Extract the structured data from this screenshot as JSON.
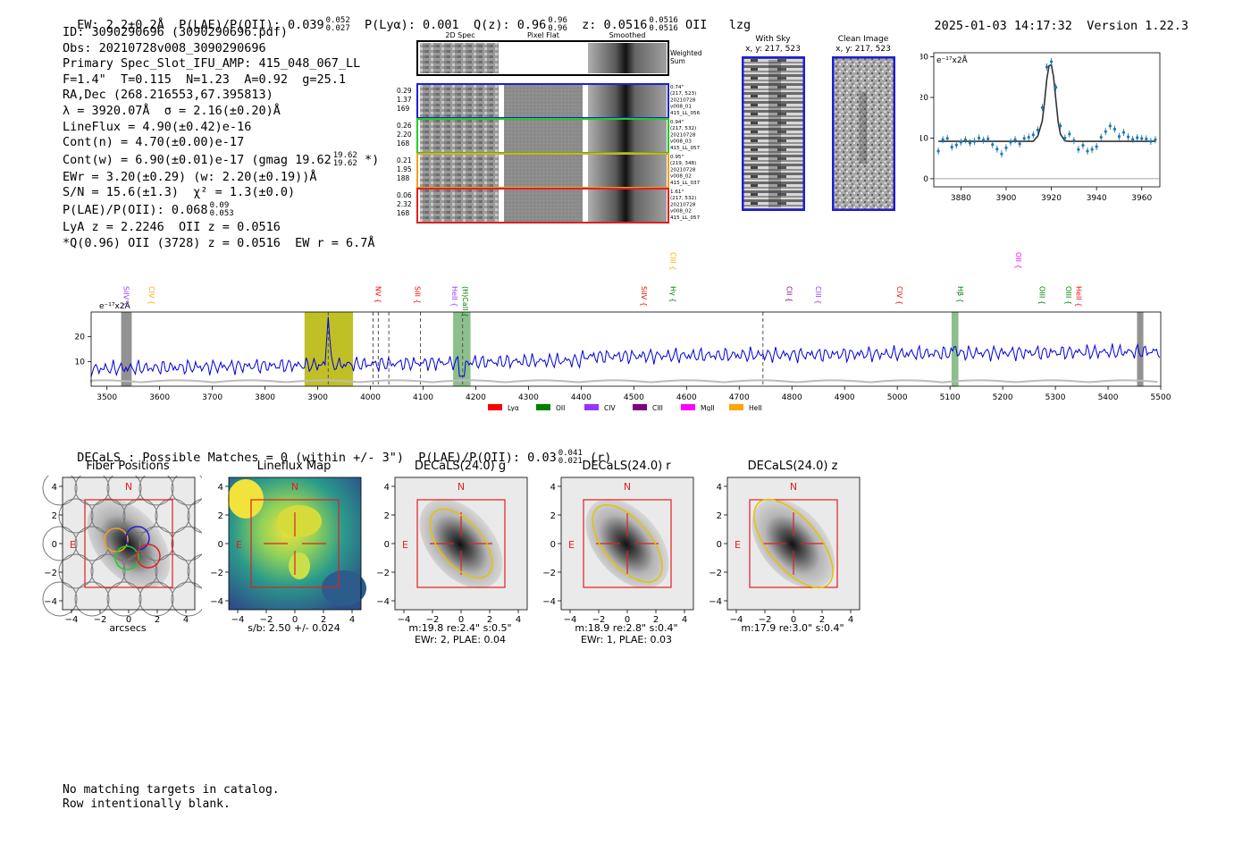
{
  "header": {
    "ew": "EW: 2.2±0.2Å",
    "plae": "P(LAE)/P(OII): 0.039",
    "plae_hi": "0.052",
    "plae_lo": "0.027",
    "plya": "P(Lyα): 0.001",
    "q": "Q(z): 0.96",
    "q_hi": "0.96",
    "q_lo": "0.96",
    "z": "z: 0.0516",
    "z_hi": "0.0516",
    "z_lo": "0.0516",
    "z_line": "OII",
    "tag": "lzg",
    "timestamp": "2025-01-03 14:17:32",
    "version": "Version 1.22.3"
  },
  "info": {
    "lines": [
      "ID: 3090290696 (3090290696.pdf)",
      "Obs: 20210728v008_3090290696",
      "Primary Spec_Slot_IFU_AMP: 415_048_067_LL",
      "F=1.4\"  T=0.115  N=1.23  A=0.92  g=25.1",
      "RA,Dec (268.216553,67.395813)",
      "λ = 3920.07Å  σ = 2.16(±0.20)Å",
      "LineFlux = 4.90(±0.42)e-16",
      "Cont(n) = 4.70(±0.00)e-17"
    ],
    "contw": "Cont(w) = 6.90(±0.01)e-17 (gmag 19.62",
    "contw_hi": "19.62",
    "contw_lo": "19.62",
    "contw_end": "*)",
    "ewr": "EWr = 3.20(±0.29) (w: 2.20(±0.19))Å",
    "sn": "S/N = 15.6(±1.3)  χ² = 1.3(±0.0)",
    "plae2": "P(LAE)/P(OII): 0.068",
    "plae2_hi": "0.09",
    "plae2_lo": "0.053",
    "lya": "LyA z = 2.2246  OII z = 0.0516",
    "q_line": "*Q(0.96) OII (3728) z = 0.0516  EW r = 6.7Å"
  },
  "spec2d": {
    "col_titles": [
      "2D Spec",
      "Pixel Flat",
      "Smoothed"
    ],
    "weighted_label": [
      "Weighted",
      "Sum"
    ],
    "rows": [
      {
        "left": [
          "0.29",
          "1.37",
          "169"
        ],
        "right": [
          "0.74\"",
          "(217, 523)",
          "20210728",
          "v008_01",
          "415_LL_056"
        ],
        "color": "#1f1fd0"
      },
      {
        "left": [
          "0.26",
          "2.20",
          "168"
        ],
        "right": [
          "0.94\"",
          "(217, 532)",
          "20210728",
          "v008_03",
          "415_LL_057"
        ],
        "color": "#22cc22"
      },
      {
        "left": [
          "0.21",
          "1.95",
          "188"
        ],
        "right": [
          "0.95\"",
          "(219, 348)",
          "20210728",
          "v008_02",
          "415_LL_037"
        ],
        "color": "#f0a020"
      },
      {
        "left": [
          "0.06",
          "2.32",
          "168"
        ],
        "right": [
          "1.61\"",
          "(217, 532)",
          "20210728",
          "v008_02",
          "415_LL_057"
        ],
        "color": "#e02020"
      }
    ]
  },
  "sky": {
    "with_sky": [
      "With Sky",
      "x, y: 217, 523"
    ],
    "clean": [
      "Clean Image",
      "x, y: 217, 523"
    ]
  },
  "zoom_chart": {
    "unit": "e⁻¹⁷x2Å",
    "x_ticks": [
      "3880",
      "3900",
      "3920",
      "3940",
      "3960"
    ],
    "y_ticks": [
      "0",
      "10",
      "20",
      "30"
    ]
  },
  "chart_data": [
    {
      "type": "line",
      "title": "",
      "xlabel": "",
      "ylabel": "e⁻¹⁷x2Å",
      "xlim": [
        3868,
        3968
      ],
      "ylim": [
        -2,
        31
      ],
      "grid": false,
      "series": [
        {
          "values_x": [
            3870,
            3872,
            3874,
            3876,
            3878,
            3880,
            3882,
            3884,
            3886,
            3888,
            3890,
            3892,
            3894,
            3896,
            3898,
            3900,
            3902,
            3904,
            3906,
            3908,
            3910,
            3912,
            3914,
            3916,
            3918,
            3920,
            3922,
            3924,
            3926,
            3928,
            3930,
            3932,
            3934,
            3936,
            3938,
            3940,
            3942,
            3944,
            3946,
            3948,
            3950,
            3952,
            3954,
            3956,
            3958,
            3960,
            3962,
            3964,
            3966
          ],
          "values_y": [
            6.8,
            9.6,
            9.9,
            7.8,
            8.3,
            9.0,
            9.6,
            8.8,
            9.2,
            10.0,
            9.5,
            9.8,
            8.4,
            7.3,
            6.1,
            7.6,
            9.0,
            9.6,
            8.6,
            9.9,
            10.2,
            10.8,
            12.0,
            17.5,
            27.5,
            28.8,
            22.5,
            13.0,
            10.0,
            11.0,
            9.4,
            7.2,
            8.2,
            6.8,
            7.2,
            7.9,
            10.2,
            11.6,
            13.0,
            12.2,
            10.4,
            11.4,
            10.3,
            9.7,
            10.1,
            9.9,
            9.8,
            9.2,
            9.6
          ]
        },
        {
          "name": "fit",
          "values_x": [
            3870,
            3912,
            3914,
            3916,
            3917,
            3918,
            3919,
            3920,
            3921,
            3922,
            3923,
            3924,
            3926,
            3928,
            3966
          ],
          "values_y": [
            9.2,
            9.2,
            10.5,
            14.2,
            19.0,
            24.5,
            27.8,
            28.0,
            25.0,
            19.5,
            14.0,
            11.0,
            9.3,
            9.2,
            9.2
          ]
        }
      ]
    },
    {
      "type": "line",
      "title": "",
      "xlabel": "",
      "ylabel": "e⁻¹⁷x2Å",
      "xlim": [
        3470,
        5500
      ],
      "ylim": [
        0,
        30
      ],
      "grid": false,
      "x_ticks": [
        "3500",
        "3600",
        "3700",
        "3800",
        "3900",
        "4000",
        "4100",
        "4200",
        "4300",
        "4400",
        "4500",
        "4600",
        "4700",
        "4800",
        "4900",
        "5000",
        "5100",
        "5200",
        "5300",
        "5400",
        "5500"
      ],
      "y_ticks": [
        "10",
        "20"
      ],
      "legend": [
        "Lyα",
        "OII",
        "CIV",
        "CIII",
        "MgII",
        "HeII"
      ],
      "legend_colors": [
        "#ff0000",
        "#008000",
        "#9933ff",
        "#800080",
        "#ff00ff",
        "#ffa500"
      ],
      "line_labels": [
        {
          "label": "SiIV",
          "x": 3527,
          "color": "#9933ff"
        },
        {
          "label": "CIV",
          "x": 3575,
          "color": "#ffa500"
        },
        {
          "label": "NV",
          "x": 4005,
          "color": "#ff0000"
        },
        {
          "label": "SiII",
          "x": 4080,
          "color": "#ff0000"
        },
        {
          "label": "HeII",
          "x": 4150,
          "color": "#9933ff"
        },
        {
          "label": "(H)CaII",
          "x": 4170,
          "color": "#008000"
        },
        {
          "label": "SiIV",
          "x": 4510,
          "color": "#ff0000"
        },
        {
          "label": "Hγ",
          "x": 4565,
          "color": "#008000"
        },
        {
          "label": "CIII",
          "x": 4565,
          "color": "#ffa500"
        },
        {
          "label": "CII",
          "x": 4785,
          "color": "#800080"
        },
        {
          "label": "CIII",
          "x": 4840,
          "color": "#9933ff"
        },
        {
          "label": "CIV",
          "x": 4995,
          "color": "#ff0000"
        },
        {
          "label": "Hβ",
          "x": 5110,
          "color": "#008000"
        },
        {
          "label": "OII",
          "x": 5220,
          "color": "#ff00ff"
        },
        {
          "label": "OIII",
          "x": 5265,
          "color": "#008000"
        },
        {
          "label": "OIII",
          "x": 5315,
          "color": "#008000"
        },
        {
          "label": "HeII",
          "x": 5335,
          "color": "#ff0000"
        }
      ]
    }
  ],
  "decals": {
    "header": "DECaLS : Possible Matches = 0 (within +/- 3\")  P(LAE)/P(OII): 0.03",
    "hi": "0.041",
    "lo": "0.021",
    "band": "(r)",
    "panels": [
      {
        "title": "Fiber Positions",
        "cap": [
          "arcsecs"
        ]
      },
      {
        "title": "Lineflux Map",
        "cap": [
          "s/b: 2.50 +/- 0.024"
        ]
      },
      {
        "title": "DECaLS(24.0) g",
        "cap": [
          "m:19.8  re:2.4\"  s:0.5\"",
          "EWr: 2, PLAE: 0.04"
        ]
      },
      {
        "title": "DECaLS(24.0) r",
        "cap": [
          "m:18.9  re:2.8\"  s:0.4\"",
          "EWr: 1, PLAE: 0.03"
        ]
      },
      {
        "title": "DECaLS(24.0) z",
        "cap": [
          "m:17.9  re:3.0\"  s:0.4\""
        ]
      }
    ],
    "n_label": "N",
    "e_label": "E",
    "axis_ticks": [
      "−4",
      "−2",
      "0",
      "2",
      "4"
    ],
    "y_ticks": [
      "4",
      "2",
      "0",
      "−2",
      "−4"
    ]
  },
  "footer": {
    "lines": [
      "No matching targets in catalog.",
      "Row intentionally blank."
    ]
  }
}
